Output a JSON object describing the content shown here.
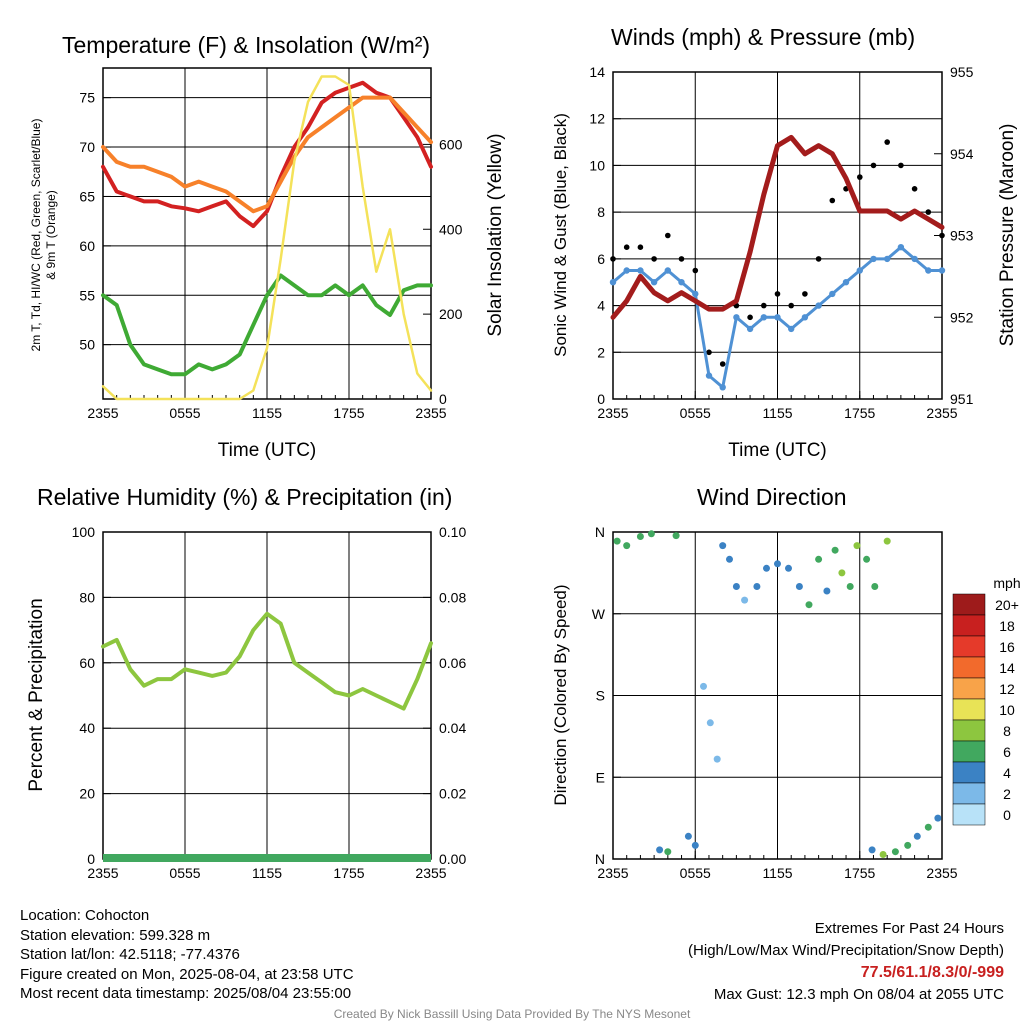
{
  "panels": {
    "temp": {
      "title": "Temperature (F) & Insolation (W/m²)",
      "xlabel": "Time (UTC)",
      "ylabel_left_1": "2m T, Td, HI/WC (Red, Green, Scarlet/Blue)",
      "ylabel_left_2": "& 9m T (Orange)",
      "ylabel_right": "Solar Insolation (Yellow)"
    },
    "wind": {
      "title": "Winds (mph) & Pressure (mb)",
      "xlabel": "Time (UTC)",
      "ylabel_left": "Sonic Wind & Gust (Blue, Black)",
      "ylabel_right": "Station Pressure (Maroon)"
    },
    "rh": {
      "title": "Relative Humidity (%) & Precipitation (in)",
      "ylabel_left": "Percent & Precipitation"
    },
    "dir": {
      "title": "Wind Direction",
      "ylabel_left": "Direction (Colored By Speed)",
      "colorbar_title": "mph",
      "colorbar_labels": [
        "20+",
        "18",
        "16",
        "14",
        "12",
        "10",
        "8",
        "6",
        "4",
        "2",
        "0"
      ],
      "colorbar_colors": [
        "#9e1b1b",
        "#c8201f",
        "#e53a2a",
        "#f26a2c",
        "#f8a349",
        "#e8e356",
        "#8dc63f",
        "#41a85f",
        "#3b82c4",
        "#7cb9e8",
        "#b8e2f8"
      ]
    }
  },
  "info": {
    "location": "Location: Cohocton",
    "elevation": "Station elevation: 599.328 m",
    "latlon": "Station lat/lon: 42.5118; -77.4376",
    "created": "Figure created on Mon, 2025-08-04, at 23:58 UTC",
    "recent": "Most recent data timestamp: 2025/08/04 23:55:00"
  },
  "extremes": {
    "heading": "Extremes For Past 24 Hours",
    "subheading": "(High/Low/Max Wind/Precipitation/Snow Depth)",
    "values": "77.5/61.1/8.3/0/-999",
    "values_color": "#c8201f",
    "gust": "Max Gust: 12.3 mph On 08/04 at 2055 UTC"
  },
  "credit": "Created By Nick Bassill Using Data Provided By The NYS Mesonet",
  "chart_data": [
    {
      "type": "line",
      "title": "Temperature (F) & Insolation (W/m²)",
      "xlabel": "Time (UTC)",
      "ylabel": "2m T, Td, HI/WC (Red, Green, Scarlet/Blue) & 9m T (Orange)",
      "y2label": "Solar Insolation (Yellow)",
      "x_ticks": [
        "2355",
        "0555",
        "1155",
        "1755",
        "2355"
      ],
      "x": [
        0,
        1,
        2,
        3,
        4,
        5,
        6,
        7,
        8,
        9,
        10,
        11,
        12,
        13,
        14,
        15,
        16,
        17,
        18,
        19,
        20,
        21,
        22,
        23,
        24
      ],
      "x_units": "hours after 2355 UTC",
      "ylim": [
        44.5,
        78
      ],
      "y_ticks": [
        50,
        55,
        60,
        65,
        70,
        75
      ],
      "y2lim": [
        0,
        780
      ],
      "y2_ticks": [
        0,
        200,
        400,
        600
      ],
      "series": [
        {
          "name": "2m T",
          "color": "#d32121",
          "axis": "left",
          "values": [
            68,
            65.5,
            65,
            64.5,
            64.5,
            64,
            63.8,
            63.5,
            64,
            64.5,
            63,
            62,
            63.5,
            67,
            70,
            72,
            74.5,
            75.5,
            76,
            76.5,
            75.5,
            75,
            73,
            71,
            68
          ]
        },
        {
          "name": "9m T",
          "color": "#f7812a",
          "axis": "left",
          "values": [
            70,
            68.5,
            68,
            68,
            67.5,
            67,
            66,
            66.5,
            66,
            65.5,
            64.5,
            63.5,
            64,
            66.5,
            69,
            71,
            72,
            73,
            74,
            75,
            75,
            75,
            73.5,
            72,
            70.5
          ]
        },
        {
          "name": "2m Td",
          "color": "#3faa34",
          "axis": "left",
          "values": [
            55,
            54,
            50,
            48,
            47.5,
            47,
            47,
            48,
            47.5,
            48,
            49,
            52,
            55,
            57,
            56,
            55,
            55,
            56,
            55,
            56,
            54,
            53,
            55.5,
            56,
            56
          ]
        },
        {
          "name": "Solar Insolation",
          "color": "#f4e25a",
          "axis": "right",
          "values": [
            30,
            0,
            0,
            0,
            0,
            0,
            0,
            0,
            0,
            0,
            0,
            20,
            120,
            330,
            560,
            700,
            760,
            760,
            740,
            500,
            300,
            400,
            200,
            60,
            20
          ]
        }
      ]
    },
    {
      "type": "scatter",
      "title": "Winds (mph) & Pressure (mb)",
      "xlabel": "Time (UTC)",
      "ylabel": "Sonic Wind & Gust (Blue, Black)",
      "y2label": "Station Pressure (Maroon)",
      "x_ticks": [
        "2355",
        "0555",
        "1155",
        "1755",
        "2355"
      ],
      "x": [
        0,
        1,
        2,
        3,
        4,
        5,
        6,
        7,
        8,
        9,
        10,
        11,
        12,
        13,
        14,
        15,
        16,
        17,
        18,
        19,
        20,
        21,
        22,
        23,
        24
      ],
      "x_units": "hours after 2355 UTC",
      "ylim": [
        0,
        14
      ],
      "y_ticks": [
        0,
        2,
        4,
        6,
        8,
        10,
        12,
        14
      ],
      "y2lim": [
        951,
        955
      ],
      "y2_ticks": [
        951,
        952,
        953,
        954,
        955
      ],
      "series": [
        {
          "name": "Sonic Wind",
          "color": "#4f91d4",
          "axis": "left",
          "values": [
            5,
            5.5,
            5.5,
            5,
            5.5,
            5,
            4.5,
            1,
            0.5,
            3.5,
            3,
            3.5,
            3.5,
            3,
            3.5,
            4,
            4.5,
            5,
            5.5,
            6,
            6,
            6.5,
            6,
            5.5,
            5.5
          ]
        },
        {
          "name": "Gust",
          "color": "#000000",
          "axis": "left",
          "values": [
            6,
            6.5,
            6.5,
            6,
            7,
            6,
            5.5,
            2,
            1.5,
            4,
            3.5,
            4,
            4.5,
            4,
            4.5,
            6,
            8.5,
            9,
            9.5,
            10,
            11,
            10,
            9,
            8,
            7
          ]
        },
        {
          "name": "Station Pressure",
          "color": "#a31c1c",
          "axis": "right",
          "values": [
            952,
            952.2,
            952.5,
            952.3,
            952.2,
            952.3,
            952.2,
            952.1,
            952.1,
            952.2,
            952.8,
            953.5,
            954.1,
            954.2,
            954,
            954.1,
            954.0,
            953.7,
            953.3,
            953.3,
            953.3,
            953.2,
            953.3,
            953.2,
            953.1
          ]
        }
      ]
    },
    {
      "type": "line",
      "title": "Relative Humidity (%) & Precipitation (in)",
      "ylabel": "Percent & Precipitation",
      "x_ticks": [
        "2355",
        "0555",
        "1155",
        "1755",
        "2355"
      ],
      "x": [
        0,
        1,
        2,
        3,
        4,
        5,
        6,
        7,
        8,
        9,
        10,
        11,
        12,
        13,
        14,
        15,
        16,
        17,
        18,
        19,
        20,
        21,
        22,
        23,
        24
      ],
      "x_units": "hours after 2355 UTC",
      "ylim": [
        0,
        100
      ],
      "y_ticks": [
        0,
        20,
        40,
        60,
        80,
        100
      ],
      "y2lim": [
        0,
        0.1
      ],
      "y2_ticks": [
        "0.00",
        "0.02",
        "0.04",
        "0.06",
        "0.08",
        "0.10"
      ],
      "series": [
        {
          "name": "Relative Humidity",
          "color": "#8dc63f",
          "axis": "left",
          "values": [
            65,
            67,
            58,
            53,
            55,
            55,
            58,
            57,
            56,
            57,
            62,
            70,
            75,
            72,
            60,
            57,
            54,
            51,
            50,
            52,
            50,
            48,
            46,
            55,
            66
          ]
        },
        {
          "name": "Precipitation",
          "color": "#41a85f",
          "axis": "right",
          "values": [
            0,
            0,
            0,
            0,
            0,
            0,
            0,
            0,
            0,
            0,
            0,
            0,
            0,
            0,
            0,
            0,
            0,
            0,
            0,
            0,
            0,
            0,
            0,
            0,
            0
          ]
        }
      ]
    },
    {
      "type": "scatter",
      "title": "Wind Direction",
      "ylabel": "Direction (Colored By Speed)",
      "x_ticks": [
        "2355",
        "0555",
        "1155",
        "1755",
        "2355"
      ],
      "y_ticks": [
        "N",
        "E",
        "S",
        "W",
        "N"
      ],
      "ylim": [
        0,
        360
      ],
      "x_units": "hours after 2355 UTC",
      "points": [
        {
          "x": 0.3,
          "dir": 350,
          "speed": 5
        },
        {
          "x": 1.0,
          "dir": 345,
          "speed": 6
        },
        {
          "x": 2.0,
          "dir": 355,
          "speed": 5
        },
        {
          "x": 2.8,
          "dir": 358,
          "speed": 6
        },
        {
          "x": 3.4,
          "dir": 10,
          "speed": 4
        },
        {
          "x": 4.0,
          "dir": 8,
          "speed": 5
        },
        {
          "x": 4.6,
          "dir": 356,
          "speed": 5
        },
        {
          "x": 5.5,
          "dir": 25,
          "speed": 4
        },
        {
          "x": 6.0,
          "dir": 15,
          "speed": 3
        },
        {
          "x": 6.6,
          "dir": 190,
          "speed": 1
        },
        {
          "x": 7.1,
          "dir": 150,
          "speed": 1
        },
        {
          "x": 7.6,
          "dir": 110,
          "speed": 1
        },
        {
          "x": 8.0,
          "dir": 345,
          "speed": 3
        },
        {
          "x": 8.5,
          "dir": 330,
          "speed": 3
        },
        {
          "x": 9.0,
          "dir": 300,
          "speed": 3
        },
        {
          "x": 9.6,
          "dir": 285,
          "speed": 2
        },
        {
          "x": 10.5,
          "dir": 300,
          "speed": 3
        },
        {
          "x": 11.2,
          "dir": 320,
          "speed": 3
        },
        {
          "x": 12.0,
          "dir": 325,
          "speed": 4
        },
        {
          "x": 12.8,
          "dir": 320,
          "speed": 4
        },
        {
          "x": 13.6,
          "dir": 300,
          "speed": 4
        },
        {
          "x": 14.3,
          "dir": 280,
          "speed": 5
        },
        {
          "x": 15.0,
          "dir": 330,
          "speed": 5
        },
        {
          "x": 15.6,
          "dir": 295,
          "speed": 4
        },
        {
          "x": 16.2,
          "dir": 340,
          "speed": 6
        },
        {
          "x": 16.7,
          "dir": 315,
          "speed": 7
        },
        {
          "x": 17.3,
          "dir": 300,
          "speed": 6
        },
        {
          "x": 17.8,
          "dir": 345,
          "speed": 7
        },
        {
          "x": 18.5,
          "dir": 330,
          "speed": 6
        },
        {
          "x": 19.1,
          "dir": 300,
          "speed": 5
        },
        {
          "x": 20.0,
          "dir": 350,
          "speed": 7
        },
        {
          "x": 18.9,
          "dir": 10,
          "speed": 4
        },
        {
          "x": 19.7,
          "dir": 5,
          "speed": 7
        },
        {
          "x": 20.6,
          "dir": 8,
          "speed": 5
        },
        {
          "x": 21.5,
          "dir": 15,
          "speed": 6
        },
        {
          "x": 22.2,
          "dir": 25,
          "speed": 4
        },
        {
          "x": 23.0,
          "dir": 35,
          "speed": 5
        },
        {
          "x": 23.7,
          "dir": 45,
          "speed": 4
        }
      ]
    }
  ]
}
